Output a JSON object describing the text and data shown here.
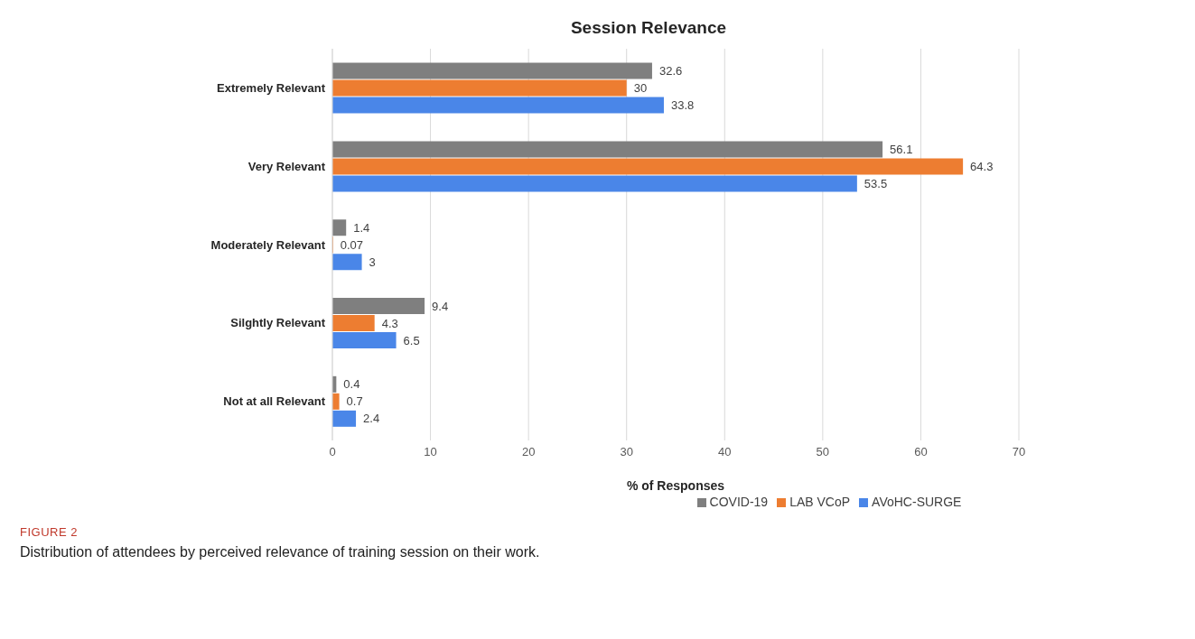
{
  "chart_data": {
    "type": "bar",
    "orientation": "horizontal",
    "title": "Session Relevance",
    "xlabel": "% of Responses",
    "categories": [
      "Extremely  Relevant",
      "Very Relevant",
      "Moderately Relevant",
      "Silghtly Relevant",
      "Not at all Relevant"
    ],
    "series": [
      {
        "name": "COVID-19",
        "color": "#7f7f7f",
        "values": [
          32.6,
          56.1,
          1.4,
          9.4,
          0.4
        ]
      },
      {
        "name": "LAB VCoP",
        "color": "#ed7d31",
        "values": [
          30,
          64.3,
          0.07,
          4.3,
          0.7
        ]
      },
      {
        "name": "AVoHC-SURGE",
        "color": "#4a86e8",
        "values": [
          33.8,
          53.5,
          3,
          6.5,
          2.4
        ]
      }
    ],
    "xlim": [
      0,
      70
    ],
    "xticks": [
      0,
      10,
      20,
      30,
      40,
      50,
      60,
      70
    ],
    "grid": "x",
    "legend": "bottom",
    "data_labels": true,
    "annotations": [
      "FIGURE 2",
      "Distribution of attendees by perceived relevance of training session on their work."
    ]
  }
}
